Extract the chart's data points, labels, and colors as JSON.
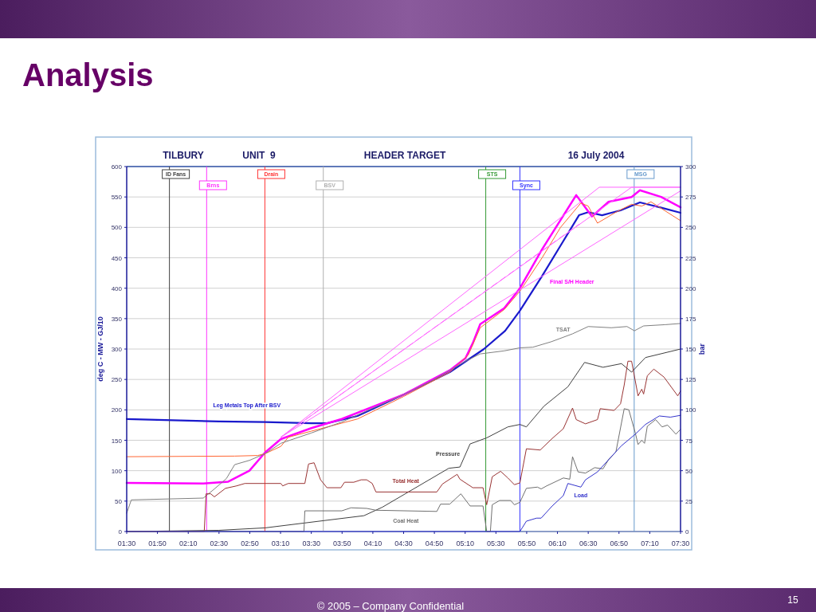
{
  "chart_data": {
    "type": "line",
    "title": "Analysis",
    "ylabel": "deg C - MW - GJ/10",
    "y2label": "bar",
    "annotations": [
      "TILBURY",
      "UNIT  9",
      "HEADER TARGET",
      "16 July 2004",
      "© 2005 – Company Confidential",
      "15"
    ],
    "xlim": [
      1.5,
      7.5
    ],
    "ylim": [
      0,
      600
    ],
    "y2lim": [
      0,
      300
    ],
    "xticks": [
      {
        "value": 1.5,
        "label": "01:30"
      },
      {
        "value": 1.8333,
        "label": "01:50"
      },
      {
        "value": 2.1667,
        "label": "02:10"
      },
      {
        "value": 2.5,
        "label": "02:30"
      },
      {
        "value": 2.8333,
        "label": "02:50"
      },
      {
        "value": 3.1667,
        "label": "03:10"
      },
      {
        "value": 3.5,
        "label": "03:30"
      },
      {
        "value": 3.8333,
        "label": "03:50"
      },
      {
        "value": 4.1667,
        "label": "04:10"
      },
      {
        "value": 4.5,
        "label": "04:30"
      },
      {
        "value": 4.8333,
        "label": "04:50"
      },
      {
        "value": 5.1667,
        "label": "05:10"
      },
      {
        "value": 5.5,
        "label": "05:30"
      },
      {
        "value": 5.8333,
        "label": "05:50"
      },
      {
        "value": 6.1667,
        "label": "06:10"
      },
      {
        "value": 6.5,
        "label": "06:30"
      },
      {
        "value": 6.8333,
        "label": "06:50"
      },
      {
        "value": 7.1667,
        "label": "07:10"
      },
      {
        "value": 7.5,
        "label": "07:30"
      }
    ],
    "yticks": [
      0,
      50,
      100,
      150,
      200,
      250,
      300,
      350,
      400,
      450,
      500,
      550,
      600
    ],
    "y2ticks": [
      0,
      25,
      50,
      75,
      100,
      125,
      150,
      175,
      200,
      225,
      250,
      275,
      300
    ],
    "grid": "y",
    "ref_lines": [
      {
        "axis": "x",
        "value": 1.963,
        "label": "ID Fans",
        "color": "#404040"
      },
      {
        "axis": "x",
        "value": 2.366,
        "label": "Brns",
        "color": "#ff33ff"
      },
      {
        "axis": "x",
        "value": 2.997,
        "label": "Drain",
        "color": "#ff3333"
      },
      {
        "axis": "x",
        "value": 3.63,
        "label": "BSV",
        "color": "#b0b0b0"
      },
      {
        "axis": "x",
        "value": 5.39,
        "label": "STS",
        "color": "#339933"
      },
      {
        "axis": "x",
        "value": 5.76,
        "label": "Sync",
        "color": "#3333ff"
      },
      {
        "axis": "x",
        "value": 6.998,
        "label": "MSG",
        "color": "#6699cc"
      }
    ],
    "series": [
      {
        "name": "Leg Metals Top After BSV",
        "color": "#1a1acc",
        "x": [
          1.5,
          2.5,
          3.0,
          3.5,
          3.67,
          4.0,
          4.5,
          5.0,
          5.37,
          5.6,
          5.76,
          6.0,
          6.2,
          6.4,
          6.5,
          6.65,
          6.85,
          7.06,
          7.3,
          7.5
        ],
        "values": [
          185,
          181,
          180,
          178,
          178,
          190,
          225,
          262,
          300,
          330,
          363,
          420,
          470,
          520,
          525,
          520,
          528,
          541,
          532,
          524
        ]
      },
      {
        "name": "Final S/H Header",
        "color": "#ff00ff",
        "x": [
          1.5,
          2.33,
          2.6,
          2.83,
          3.0,
          3.17,
          3.5,
          3.83,
          4.5,
          5.0,
          5.17,
          5.25,
          5.33,
          5.59,
          5.76,
          6.0,
          6.37,
          6.54,
          6.72,
          6.97,
          7.06,
          7.29,
          7.5
        ],
        "values": [
          80,
          79,
          82,
          100,
          130,
          152,
          170,
          185,
          225,
          265,
          285,
          310,
          341,
          367,
          400,
          464,
          553,
          518,
          542,
          550,
          561,
          550,
          533
        ]
      },
      {
        "color": "#ff6633",
        "x": [
          1.5,
          2.67,
          2.92,
          3.0,
          3.17,
          3.25,
          3.5,
          4.0,
          4.5,
          5.0,
          5.2,
          5.33,
          5.59,
          5.76,
          6.0,
          6.2,
          6.42,
          6.5,
          6.6,
          6.8,
          6.97,
          7.08,
          7.18,
          7.5
        ],
        "values": [
          123,
          124,
          125,
          128,
          140,
          155,
          165,
          185,
          222,
          262,
          290,
          335,
          365,
          395,
          450,
          500,
          540,
          535,
          507,
          525,
          538,
          535,
          542,
          511
        ]
      },
      {
        "name": "TSAT",
        "color": "#808080",
        "x": [
          1.5,
          1.55,
          2.33,
          2.45,
          2.58,
          2.67,
          2.83,
          3.0,
          3.17,
          3.5,
          3.83,
          4.17,
          4.5,
          4.83,
          5.0,
          5.17,
          5.33,
          5.59,
          5.76,
          5.9,
          6.1,
          6.33,
          6.5,
          6.75,
          6.92,
          7.0,
          7.1,
          7.33,
          7.5
        ],
        "values": [
          30,
          52,
          55,
          70,
          87,
          110,
          117,
          128,
          145,
          162,
          180,
          203,
          225,
          250,
          265,
          280,
          292,
          297,
          302,
          303,
          312,
          325,
          337,
          335,
          337,
          330,
          338,
          340,
          342
        ]
      },
      {
        "name": "Pressure",
        "color": "#404040",
        "axis": "y2",
        "x": [
          1.5,
          2.5,
          3.0,
          3.64,
          4.07,
          4.27,
          4.99,
          5.11,
          5.22,
          5.4,
          5.63,
          5.76,
          5.83,
          6.02,
          6.28,
          6.46,
          6.66,
          6.86,
          6.97,
          7.12,
          7.5
        ],
        "values": [
          0,
          1,
          3,
          9,
          13,
          20,
          52,
          53,
          72,
          77,
          86,
          88,
          86,
          103,
          119,
          139,
          135,
          138,
          131,
          143,
          150
        ]
      },
      {
        "name": "Total Heat",
        "color": "#993333",
        "x": [
          1.5,
          2.34,
          2.36,
          2.41,
          2.45,
          2.57,
          2.69,
          2.78,
          3.17,
          3.19,
          3.25,
          3.43,
          3.47,
          3.53,
          3.6,
          3.67,
          3.82,
          3.86,
          3.96,
          4.04,
          4.1,
          4.16,
          4.2,
          4.86,
          4.92,
          5.08,
          5.11,
          5.25,
          5.36,
          5.4,
          5.46,
          5.55,
          5.63,
          5.7,
          5.76,
          5.83,
          5.98,
          6.11,
          6.23,
          6.33,
          6.37,
          6.47,
          6.6,
          6.63,
          6.78,
          6.85,
          6.89,
          6.93,
          6.97,
          7.04,
          7.08,
          7.1,
          7.14,
          7.21,
          7.32,
          7.47,
          7.5
        ],
        "values": [
          0,
          0,
          62,
          62,
          57,
          71,
          75,
          79,
          79,
          75,
          79,
          79,
          111,
          113,
          85,
          72,
          72,
          81,
          81,
          85,
          85,
          79,
          65,
          65,
          78,
          94,
          86,
          72,
          72,
          44,
          90,
          99,
          88,
          77,
          80,
          136,
          134,
          153,
          169,
          203,
          184,
          177,
          184,
          202,
          199,
          210,
          241,
          280,
          280,
          223,
          234,
          226,
          256,
          267,
          254,
          223,
          231
        ]
      },
      {
        "name": "Coal Heat",
        "color": "#707070",
        "x": [
          1.5,
          3.42,
          3.43,
          3.83,
          3.93,
          4.1,
          4.2,
          4.86,
          4.9,
          5.0,
          5.12,
          5.22,
          5.36,
          5.4,
          5.44,
          5.46,
          5.54,
          5.66,
          5.7,
          5.76,
          5.83,
          5.95,
          5.99,
          6.05,
          6.23,
          6.3,
          6.33,
          6.39,
          6.47,
          6.57,
          6.66,
          6.72,
          6.8,
          6.89,
          6.94,
          7.01,
          7.04,
          7.08,
          7.11,
          7.14,
          7.23,
          7.3,
          7.36,
          7.45,
          7.5
        ],
        "values": [
          0,
          0,
          34,
          34,
          39,
          38,
          35,
          33,
          45,
          45,
          62,
          42,
          42,
          0,
          0,
          44,
          51,
          51,
          44,
          48,
          71,
          73,
          70,
          75,
          88,
          86,
          123,
          98,
          96,
          105,
          103,
          118,
          131,
          202,
          200,
          162,
          143,
          150,
          145,
          173,
          184,
          172,
          175,
          160,
          168
        ]
      },
      {
        "name": "Load",
        "color": "#3333cc",
        "x": [
          1.5,
          5.76,
          5.83,
          5.94,
          5.99,
          6.11,
          6.23,
          6.28,
          6.42,
          6.47,
          6.6,
          6.75,
          6.86,
          7.01,
          7.12,
          7.27,
          7.39,
          7.5
        ],
        "values": [
          0,
          0,
          17,
          22,
          22,
          42,
          59,
          79,
          73,
          85,
          98,
          123,
          141,
          160,
          176,
          190,
          188,
          191
        ]
      },
      {
        "color": "#ff66ff",
        "x": [
          3.17,
          6.62,
          7.5
        ],
        "values": [
          155,
          566,
          566
        ]
      },
      {
        "color": "#ff66ff",
        "x": [
          3.17,
          6.97,
          7.5
        ],
        "values": [
          155,
          566,
          566
        ]
      },
      {
        "color": "#ff66ff",
        "line_style": "dashed",
        "x": [
          3.17,
          6.4
        ],
        "values": [
          155,
          505
        ]
      },
      {
        "color": "#ff66ff",
        "x": [
          3.17,
          7.5
        ],
        "values": [
          155,
          560
        ]
      }
    ]
  }
}
